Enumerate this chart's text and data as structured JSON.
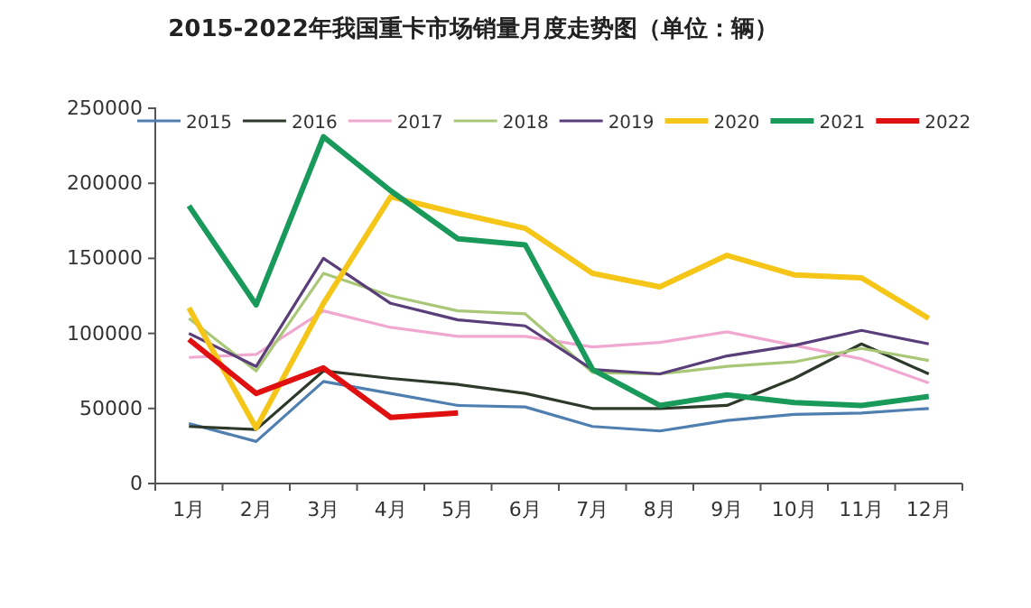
{
  "chart_data": {
    "type": "line",
    "title": "2015-2022年我国重卡市场销量月度走势图（单位：辆）",
    "categories": [
      "1月",
      "2月",
      "3月",
      "4月",
      "5月",
      "6月",
      "7月",
      "8月",
      "9月",
      "10月",
      "11月",
      "12月"
    ],
    "ylim": [
      0,
      250000
    ],
    "yticks": [
      0,
      50000,
      100000,
      150000,
      200000,
      250000
    ],
    "grid": false,
    "legend": "top",
    "marker": "none",
    "series": [
      {
        "name": "2015",
        "color": "#4f7fb0",
        "values": [
          40000,
          28000,
          68000,
          60000,
          52000,
          51000,
          38000,
          35000,
          42000,
          46000,
          47000,
          50000
        ]
      },
      {
        "name": "2016",
        "color": "#2d3a2a",
        "values": [
          38000,
          36000,
          75000,
          70000,
          66000,
          60000,
          50000,
          50000,
          52000,
          70000,
          93000,
          73000
        ]
      },
      {
        "name": "2017",
        "color": "#f0a8d0",
        "values": [
          84000,
          86000,
          115000,
          104000,
          98000,
          98000,
          91000,
          94000,
          101000,
          92000,
          83000,
          67000
        ]
      },
      {
        "name": "2018",
        "color": "#a8c878",
        "values": [
          110000,
          75000,
          140000,
          125000,
          115000,
          113000,
          74000,
          73000,
          78000,
          81000,
          90000,
          82000
        ]
      },
      {
        "name": "2019",
        "color": "#5a3e7a",
        "values": [
          100000,
          78000,
          150000,
          120000,
          109000,
          105000,
          76000,
          73000,
          85000,
          92000,
          102000,
          93000
        ]
      },
      {
        "name": "2020",
        "color": "#f5c518",
        "values": [
          117000,
          37000,
          120000,
          191000,
          180000,
          170000,
          140000,
          131000,
          152000,
          139000,
          137000,
          110000
        ]
      },
      {
        "name": "2021",
        "color": "#1a9a5a",
        "values": [
          185000,
          119000,
          231000,
          195000,
          163000,
          159000,
          76000,
          52000,
          59000,
          54000,
          52000,
          58000
        ]
      },
      {
        "name": "2022",
        "color": "#e01010",
        "values": [
          96000,
          60000,
          77000,
          44000,
          47000,
          null,
          null,
          null,
          null,
          null,
          null,
          null
        ]
      }
    ]
  }
}
